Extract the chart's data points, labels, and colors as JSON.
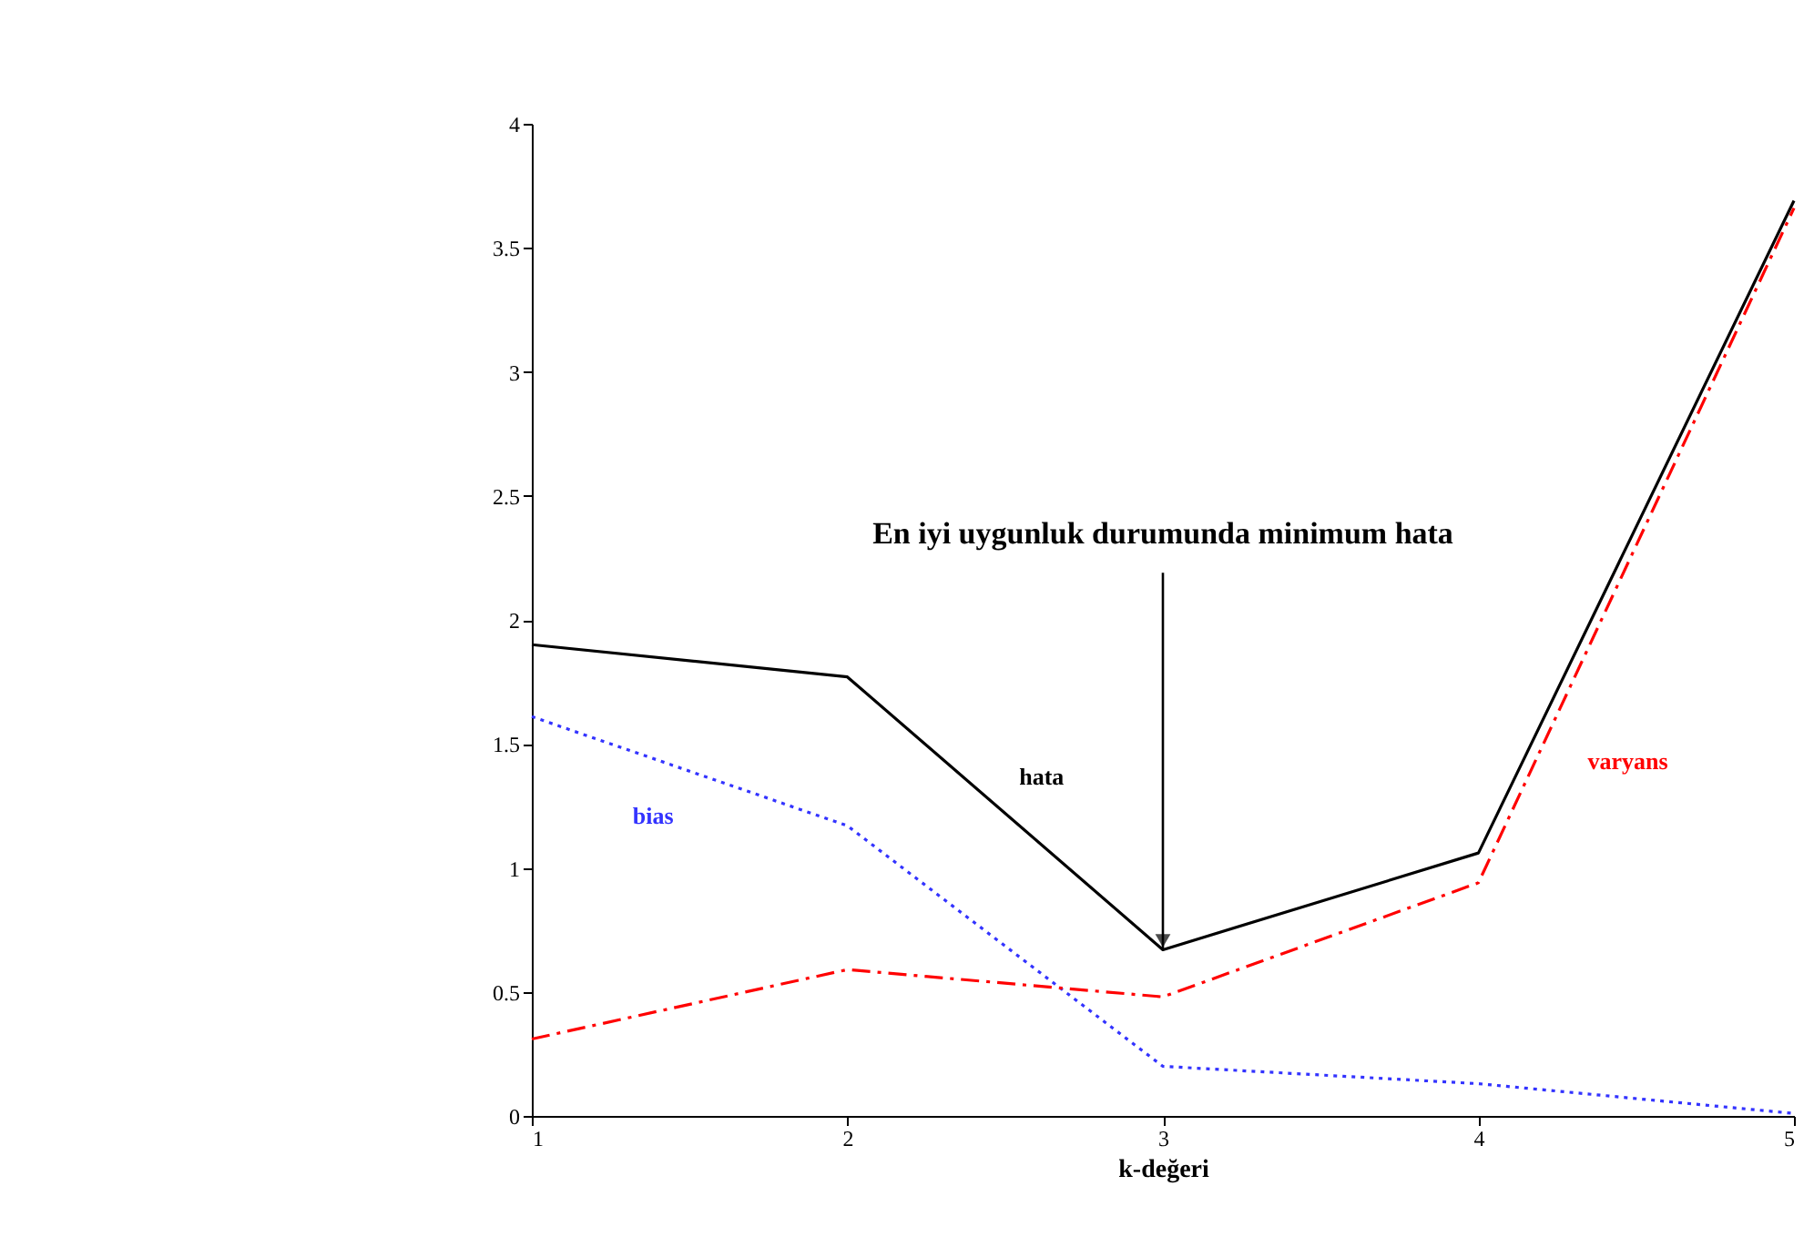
{
  "chart_data": {
    "type": "line",
    "x": [
      1,
      2,
      3,
      4,
      5
    ],
    "xlabel": "k-değeri",
    "xlim": [
      1,
      5
    ],
    "xticks": [
      1,
      2,
      3,
      4,
      5
    ],
    "ylim": [
      0,
      4
    ],
    "yticks": [
      0,
      0.5,
      1,
      1.5,
      2,
      2.5,
      3,
      3.5,
      4
    ],
    "series": [
      {
        "name": "hata",
        "color": "#000000",
        "line_style": "solid",
        "values": [
          1.9,
          1.77,
          0.67,
          1.06,
          3.69
        ]
      },
      {
        "name": "bias",
        "color": "#3333ff",
        "line_style": "dotted",
        "values": [
          1.61,
          1.17,
          0.2,
          0.13,
          0.01
        ]
      },
      {
        "name": "varyans",
        "color": "#ff0000",
        "line_style": "dashdot",
        "values": [
          0.31,
          0.59,
          0.48,
          0.94,
          3.66
        ]
      }
    ],
    "annotations": [
      {
        "text": "En iyi uygunluk durumunda minimum hata",
        "x": 3,
        "y": 0.67
      }
    ],
    "grid": false,
    "marker": "none"
  }
}
